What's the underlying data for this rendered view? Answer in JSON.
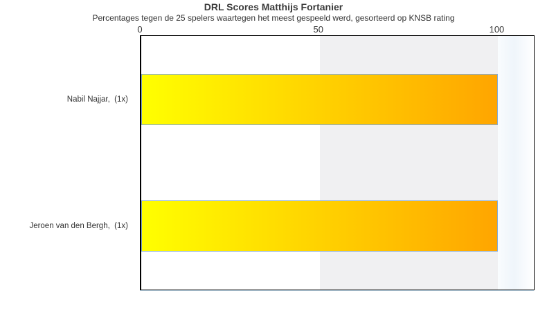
{
  "chart_data": {
    "type": "bar",
    "orientation": "horizontal",
    "title": "DRL Scores Matthijs Fortanier",
    "subtitle": "Percentages tegen de 25 spelers waartegen het meest gespeeld werd, gesorteerd op KNSB rating",
    "categories": [
      "Nabil Najjar,  (1x)",
      "Jeroen van den Bergh,  (1x)"
    ],
    "values": [
      100,
      100
    ],
    "x_ticks": [
      0,
      50,
      100
    ],
    "xlim": [
      0,
      110
    ],
    "band_range": [
      50,
      100
    ],
    "grid": false,
    "legend": "none",
    "axis_position": "top"
  },
  "colors": {
    "bar_gradient_start": "#ffff00",
    "bar_gradient_end": "#ffa500",
    "bar_border": "#85abd6",
    "band_fill": "#f0f0f2",
    "right_zone_start": "#f9fcfe",
    "right_zone_mid": "#eff5fb",
    "right_zone_end": "#ffffff",
    "plot_border": "#000000",
    "baseline": "#bcd6e8",
    "title_text": "#3b3b3b",
    "text": "#333333"
  }
}
